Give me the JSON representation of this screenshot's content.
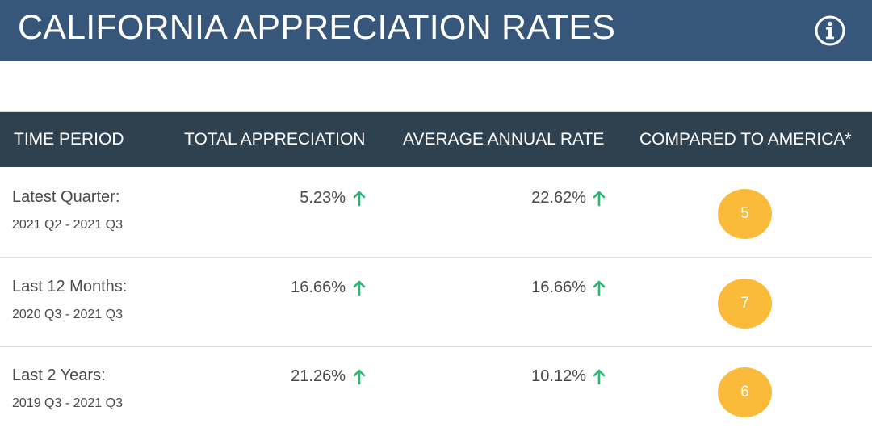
{
  "header": {
    "title": "CALIFORNIA APPRECIATION RATES",
    "info_icon": "info-circle-icon"
  },
  "table": {
    "columns": [
      "TIME PERIOD",
      "TOTAL APPRECIATION",
      "AVERAGE ANNUAL RATE",
      "COMPARED TO AMERICA*"
    ],
    "rows": [
      {
        "period_label": "Latest Quarter:",
        "period_range": "2021 Q2 - 2021 Q3",
        "total": "5.23%",
        "average": "22.62%",
        "rank": "5"
      },
      {
        "period_label": "Last 12 Months:",
        "period_range": "2020 Q3 - 2021 Q3",
        "total": "16.66%",
        "average": "16.66%",
        "rank": "7"
      },
      {
        "period_label": "Last 2 Years:",
        "period_range": "2019 Q3 - 2021 Q3",
        "total": "21.26%",
        "average": "10.12%",
        "rank": "6"
      }
    ],
    "trend_icon": "arrow-up-icon"
  },
  "colors": {
    "header_bg": "#37577a",
    "table_header_bg": "#2f404f",
    "trend_up": "#2bb673",
    "rank_badge": "#fbbb3a"
  }
}
